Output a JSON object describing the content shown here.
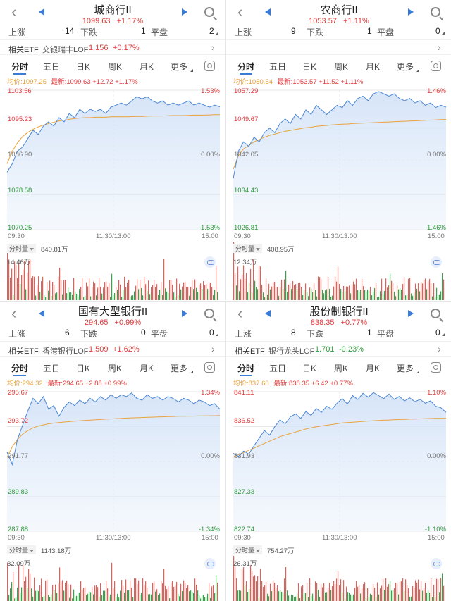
{
  "panels": [
    {
      "title": "城商行II",
      "price": "1099.63",
      "change": "+1.17%",
      "stats": {
        "up_label": "上涨",
        "up": "14",
        "down_label": "下跌",
        "down": "1",
        "flat_label": "平盘",
        "flat": "2"
      },
      "etf": {
        "label": "相关ETF",
        "name": "交银瑞丰LOF",
        "price": "1.156",
        "change": "+0.17%",
        "color": "#e03c3c"
      },
      "tabs": [
        "分时",
        "五日",
        "日K",
        "周K",
        "月K",
        "更多"
      ],
      "avg_text": "均价:1097.25",
      "latest_text": "最新:1099.63  +12.72  +1.17%",
      "y_labels": {
        "top": "1103.56",
        "mid_hi": "1095.23",
        "base": "1086.90",
        "mid_lo": "1078.58",
        "bottom": "1070.25"
      },
      "pct_labels": {
        "top": "1.53%",
        "base": "0.00%",
        "bottom": "-1.53%"
      },
      "times": [
        "09:30",
        "11:30/13:00",
        "15:00"
      ],
      "vol_label": "分时量",
      "vol_value": "840.81万",
      "vol_max": "14.46万",
      "series": {
        "ymin": 1070.25,
        "ymax": 1103.56,
        "price": [
          1084,
          1086,
          1089,
          1090,
          1092,
          1094,
          1093,
          1095,
          1096,
          1095,
          1097,
          1096,
          1098,
          1097,
          1099,
          1098,
          1099,
          1098.5,
          1099,
          1098,
          1099.5,
          1100,
          1100.5,
          1100,
          1101,
          1102,
          1101.5,
          1102,
          1101,
          1100.5,
          1101,
          1100,
          1100.5,
          1100,
          1100.5,
          1101,
          1100,
          1100.5,
          1100,
          1099.5,
          1100,
          1099.6
        ],
        "avg": [
          1086,
          1089,
          1091,
          1092.5,
          1093.5,
          1094.2,
          1094.8,
          1095.2,
          1095.6,
          1095.9,
          1096.2,
          1096.4,
          1096.6,
          1096.8,
          1096.9,
          1097.0,
          1097.0,
          1097.1,
          1097.1,
          1097.1,
          1097.2,
          1097.2,
          1097.2,
          1097.2,
          1097.25,
          1097.3,
          1097.3,
          1097.35,
          1097.4,
          1097.4,
          1097.4,
          1097.45,
          1097.5,
          1097.5,
          1097.5,
          1097.55,
          1097.6,
          1097.6,
          1097.6,
          1097.65,
          1097.7,
          1097.7
        ]
      }
    },
    {
      "title": "农商行II",
      "price": "1053.57",
      "change": "+1.11%",
      "stats": {
        "up_label": "上涨",
        "up": "9",
        "down_label": "下跌",
        "down": "1",
        "flat_label": "平盘",
        "flat": "0"
      },
      "etf": {
        "label": "",
        "name": "",
        "price": "",
        "change": "",
        "color": "#e03c3c"
      },
      "tabs": [
        "分时",
        "五日",
        "日K",
        "周K",
        "月K",
        "更多"
      ],
      "avg_text": "均价:1050.54",
      "latest_text": "最新:1053.57  +11.52  +1.11%",
      "y_labels": {
        "top": "1057.29",
        "mid_hi": "1049.67",
        "base": "1042.05",
        "mid_lo": "1034.43",
        "bottom": "1026.81"
      },
      "pct_labels": {
        "top": "1.46%",
        "base": "0.00%",
        "bottom": "-1.46%"
      },
      "times": [
        "09:30",
        "11:30/13:00",
        "15:00"
      ],
      "vol_label": "分时量",
      "vol_value": "408.95万",
      "vol_max": "12.34万",
      "series": {
        "ymin": 1026.81,
        "ymax": 1057.29,
        "price": [
          1038,
          1044,
          1046,
          1045,
          1047,
          1046,
          1048,
          1049,
          1048,
          1050,
          1051,
          1050,
          1052,
          1051,
          1053,
          1052,
          1054,
          1053,
          1052,
          1053,
          1054,
          1053.5,
          1055,
          1054,
          1055.5,
          1056,
          1055,
          1056.5,
          1057,
          1056.5,
          1056,
          1056.5,
          1055.5,
          1055,
          1055.5,
          1054.5,
          1055,
          1054,
          1054.5,
          1053.5,
          1054,
          1053.6
        ],
        "avg": [
          1040,
          1043,
          1044.5,
          1045.2,
          1046,
          1046.5,
          1047,
          1047.4,
          1047.7,
          1048,
          1048.3,
          1048.5,
          1048.7,
          1048.9,
          1049.1,
          1049.2,
          1049.4,
          1049.5,
          1049.6,
          1049.7,
          1049.8,
          1049.85,
          1049.9,
          1050,
          1050.05,
          1050.1,
          1050.15,
          1050.2,
          1050.25,
          1050.3,
          1050.35,
          1050.4,
          1050.45,
          1050.5,
          1050.55,
          1050.6,
          1050.65,
          1050.7,
          1050.75,
          1050.8,
          1050.85,
          1050.9
        ]
      }
    },
    {
      "title": "国有大型银行II",
      "price": "294.65",
      "change": "+0.99%",
      "stats": {
        "up_label": "上涨",
        "up": "6",
        "down_label": "下跌",
        "down": "0",
        "flat_label": "平盘",
        "flat": "0"
      },
      "etf": {
        "label": "相关ETF",
        "name": "香港银行LOF",
        "price": "1.509",
        "change": "+1.62%",
        "color": "#e03c3c"
      },
      "tabs": [
        "分时",
        "五日",
        "日K",
        "周K",
        "月K",
        "更多"
      ],
      "avg_text": "均价:294.32",
      "latest_text": "最新:294.65  +2.88  +0.99%",
      "y_labels": {
        "top": "295.67",
        "mid_hi": "293.72",
        "base": "291.77",
        "mid_lo": "289.83",
        "bottom": "287.88"
      },
      "pct_labels": {
        "top": "1.34%",
        "base": "0.00%",
        "bottom": "-1.34%"
      },
      "times": [
        "09:30",
        "11:30/13:00",
        "15:00"
      ],
      "vol_label": "分时量",
      "vol_value": "1143.18万",
      "vol_max": "32.09万",
      "series": {
        "ymin": 287.88,
        "ymax": 295.67,
        "price": [
          292.3,
          291.6,
          293.0,
          293.8,
          294.6,
          295.3,
          295.0,
          295.4,
          294.7,
          294.9,
          294.3,
          294.8,
          295.1,
          294.9,
          295.2,
          295.0,
          295.3,
          295.1,
          295.4,
          295.2,
          295.5,
          295.3,
          295.5,
          295.4,
          295.6,
          295.3,
          295.2,
          295.5,
          295.3,
          295.4,
          295.2,
          295.4,
          295.3,
          295.1,
          295.3,
          295.2,
          295.0,
          295.2,
          295.1,
          294.9,
          295.0,
          294.7
        ],
        "avg": [
          292.0,
          292.6,
          293.0,
          293.3,
          293.5,
          293.65,
          293.75,
          293.82,
          293.88,
          293.92,
          293.95,
          293.98,
          294.0,
          294.03,
          294.05,
          294.07,
          294.09,
          294.1,
          294.12,
          294.14,
          294.15,
          294.17,
          294.18,
          294.2,
          294.21,
          294.22,
          294.23,
          294.24,
          294.25,
          294.26,
          294.27,
          294.28,
          294.29,
          294.3,
          294.3,
          294.31,
          294.31,
          294.32,
          294.32,
          294.33,
          294.33,
          294.34
        ]
      }
    },
    {
      "title": "股份制银行II",
      "price": "838.35",
      "change": "+0.77%",
      "stats": {
        "up_label": "上涨",
        "up": "8",
        "down_label": "下跌",
        "down": "1",
        "flat_label": "平盘",
        "flat": "0"
      },
      "etf": {
        "label": "相关ETF",
        "name": "银行龙头LOF",
        "price": "1.701",
        "change": "-0.23%",
        "color": "#2e9a3a"
      },
      "tabs": [
        "分时",
        "五日",
        "日K",
        "周K",
        "月K",
        "更多"
      ],
      "avg_text": "均价:837.60",
      "latest_text": "最新:838.35  +6.42  +0.77%",
      "y_labels": {
        "top": "841.11",
        "mid_hi": "836.52",
        "base": "831.93",
        "mid_lo": "827.33",
        "bottom": "822.74"
      },
      "pct_labels": {
        "top": "1.10%",
        "base": "0.00%",
        "bottom": "-1.10%"
      },
      "times": [
        "09:30",
        "11:30/13:00",
        "15:00"
      ],
      "vol_label": "分时量",
      "vol_value": "754.27万",
      "vol_max": "26.31万",
      "series": {
        "ymin": 822.74,
        "ymax": 841.11,
        "price": [
          833.0,
          832.6,
          833.3,
          832.9,
          834.0,
          835.0,
          836.0,
          835.4,
          836.5,
          837.4,
          836.9,
          837.8,
          838.2,
          837.6,
          838.5,
          838.0,
          838.9,
          838.4,
          839.2,
          838.8,
          839.6,
          840.2,
          839.5,
          840.6,
          840.1,
          840.9,
          840.4,
          841.0,
          840.6,
          840.2,
          840.8,
          840.1,
          840.5,
          839.9,
          840.3,
          839.8,
          840.1,
          839.6,
          839.9,
          839.2,
          839.0,
          838.4
        ],
        "avg": [
          832.5,
          832.8,
          833.1,
          833.4,
          833.7,
          834.0,
          834.3,
          834.6,
          834.9,
          835.2,
          835.4,
          835.6,
          835.8,
          836.0,
          836.2,
          836.35,
          836.5,
          836.6,
          836.7,
          836.8,
          836.9,
          837.0,
          837.05,
          837.1,
          837.15,
          837.2,
          837.25,
          837.3,
          837.33,
          837.36,
          837.39,
          837.42,
          837.45,
          837.47,
          837.5,
          837.52,
          837.54,
          837.56,
          837.58,
          837.6,
          837.61,
          837.62
        ]
      }
    }
  ]
}
